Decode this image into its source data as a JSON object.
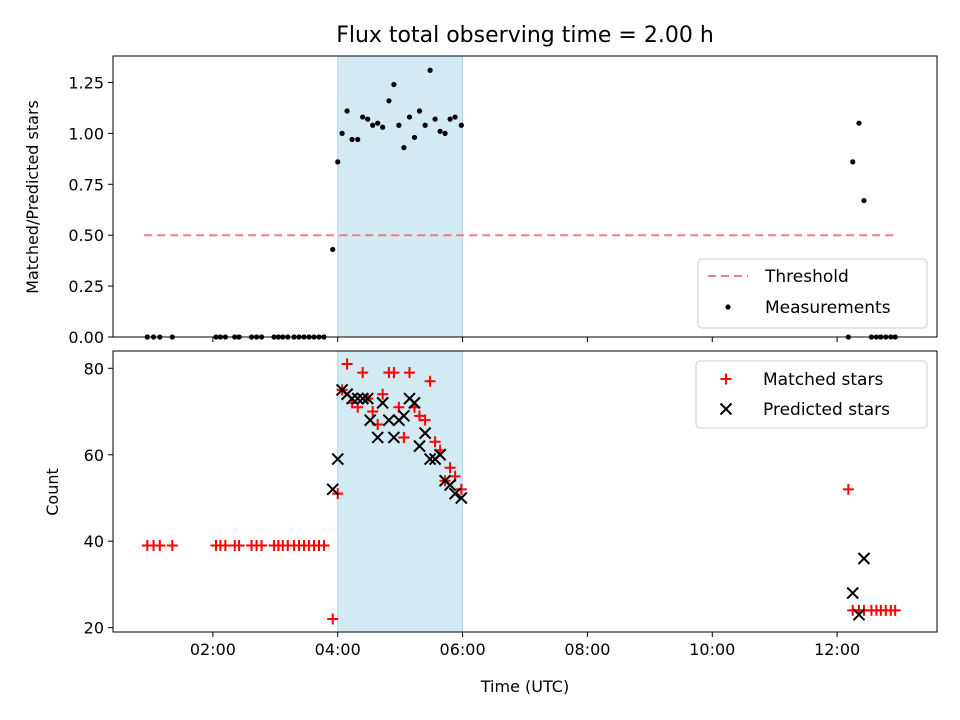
{
  "chart_data": [
    {
      "type": "scatter",
      "title": "Flux total observing time = 2.00 h",
      "xlabel": "",
      "ylabel": "Matched/Predicted stars",
      "x_unit": "hours UTC",
      "xlim": [
        0.4,
        13.6
      ],
      "ylim": [
        0,
        1.38
      ],
      "yticks": [
        "0.00",
        "0.25",
        "0.50",
        "0.75",
        "1.00",
        "1.25"
      ],
      "ytick_values": [
        0,
        0.25,
        0.5,
        0.75,
        1.0,
        1.25
      ],
      "highlight_span": [
        4.0,
        6.0
      ],
      "highlight_color": "#add8e6",
      "threshold": {
        "name": "Threshold",
        "value": 0.5,
        "x_range": [
          0.9,
          12.95
        ],
        "color": "#f08080"
      },
      "series": [
        {
          "name": "Measurements",
          "color": "#000000",
          "points": [
            [
              0.95,
              0
            ],
            [
              1.05,
              0
            ],
            [
              1.15,
              0
            ],
            [
              1.35,
              0
            ],
            [
              2.05,
              0
            ],
            [
              2.12,
              0
            ],
            [
              2.2,
              0
            ],
            [
              2.35,
              0
            ],
            [
              2.42,
              0
            ],
            [
              2.62,
              0
            ],
            [
              2.7,
              0
            ],
            [
              2.78,
              0
            ],
            [
              2.98,
              0
            ],
            [
              3.05,
              0
            ],
            [
              3.12,
              0
            ],
            [
              3.2,
              0
            ],
            [
              3.3,
              0
            ],
            [
              3.38,
              0
            ],
            [
              3.46,
              0
            ],
            [
              3.54,
              0
            ],
            [
              3.62,
              0
            ],
            [
              3.7,
              0
            ],
            [
              3.78,
              0
            ],
            [
              3.92,
              0.43
            ],
            [
              4.0,
              0.86
            ],
            [
              4.07,
              1.0
            ],
            [
              4.15,
              1.11
            ],
            [
              4.23,
              0.97
            ],
            [
              4.32,
              0.97
            ],
            [
              4.4,
              1.08
            ],
            [
              4.48,
              1.07
            ],
            [
              4.56,
              1.04
            ],
            [
              4.64,
              1.05
            ],
            [
              4.72,
              1.03
            ],
            [
              4.82,
              1.16
            ],
            [
              4.9,
              1.24
            ],
            [
              4.98,
              1.04
            ],
            [
              5.06,
              0.93
            ],
            [
              5.15,
              1.08
            ],
            [
              5.23,
              0.98
            ],
            [
              5.31,
              1.11
            ],
            [
              5.4,
              1.04
            ],
            [
              5.48,
              1.31
            ],
            [
              5.56,
              1.07
            ],
            [
              5.64,
              1.01
            ],
            [
              5.72,
              1.0
            ],
            [
              5.8,
              1.07
            ],
            [
              5.88,
              1.08
            ],
            [
              5.98,
              1.04
            ],
            [
              12.18,
              0
            ],
            [
              12.25,
              0.86
            ],
            [
              12.35,
              1.05
            ],
            [
              12.43,
              0.67
            ],
            [
              12.55,
              0
            ],
            [
              12.63,
              0
            ],
            [
              12.7,
              0
            ],
            [
              12.78,
              0
            ],
            [
              12.86,
              0
            ],
            [
              12.93,
              0
            ]
          ]
        }
      ],
      "legend": {
        "position": "lower right",
        "entries": [
          "Threshold",
          "Measurements"
        ]
      }
    },
    {
      "type": "scatter",
      "title": "",
      "xlabel": "Time (UTC)",
      "ylabel": "Count",
      "x_unit": "hours UTC",
      "xlim": [
        0.4,
        13.6
      ],
      "ylim": [
        19,
        84
      ],
      "yticks": [
        "20",
        "40",
        "60",
        "80"
      ],
      "ytick_values": [
        20,
        40,
        60,
        80
      ],
      "xticks": [
        "02:00",
        "04:00",
        "06:00",
        "08:00",
        "10:00",
        "12:00"
      ],
      "xtick_values": [
        2,
        4,
        6,
        8,
        10,
        12
      ],
      "highlight_span": [
        4.0,
        6.0
      ],
      "highlight_color": "#add8e6",
      "series": [
        {
          "name": "Matched stars",
          "marker": "plus",
          "color": "#ff0000",
          "points": [
            [
              0.95,
              39
            ],
            [
              1.05,
              39
            ],
            [
              1.15,
              39
            ],
            [
              1.35,
              39
            ],
            [
              2.05,
              39
            ],
            [
              2.12,
              39
            ],
            [
              2.2,
              39
            ],
            [
              2.35,
              39
            ],
            [
              2.42,
              39
            ],
            [
              2.62,
              39
            ],
            [
              2.7,
              39
            ],
            [
              2.78,
              39
            ],
            [
              2.98,
              39
            ],
            [
              3.05,
              39
            ],
            [
              3.12,
              39
            ],
            [
              3.2,
              39
            ],
            [
              3.3,
              39
            ],
            [
              3.38,
              39
            ],
            [
              3.46,
              39
            ],
            [
              3.54,
              39
            ],
            [
              3.62,
              39
            ],
            [
              3.7,
              39
            ],
            [
              3.78,
              39
            ],
            [
              3.92,
              22
            ],
            [
              4.0,
              51
            ],
            [
              4.07,
              75
            ],
            [
              4.15,
              81
            ],
            [
              4.23,
              72
            ],
            [
              4.32,
              71
            ],
            [
              4.4,
              79
            ],
            [
              4.48,
              73
            ],
            [
              4.56,
              70
            ],
            [
              4.64,
              67
            ],
            [
              4.72,
              74
            ],
            [
              4.82,
              79
            ],
            [
              4.9,
              79
            ],
            [
              4.98,
              71
            ],
            [
              5.06,
              64
            ],
            [
              5.15,
              79
            ],
            [
              5.23,
              71
            ],
            [
              5.31,
              69
            ],
            [
              5.4,
              68
            ],
            [
              5.48,
              77
            ],
            [
              5.56,
              63
            ],
            [
              5.64,
              61
            ],
            [
              5.72,
              54
            ],
            [
              5.8,
              57
            ],
            [
              5.88,
              55
            ],
            [
              5.98,
              52
            ],
            [
              12.18,
              52
            ],
            [
              12.25,
              24
            ],
            [
              12.35,
              24
            ],
            [
              12.43,
              24
            ],
            [
              12.55,
              24
            ],
            [
              12.63,
              24
            ],
            [
              12.7,
              24
            ],
            [
              12.78,
              24
            ],
            [
              12.86,
              24
            ],
            [
              12.93,
              24
            ]
          ]
        },
        {
          "name": "Predicted stars",
          "marker": "x",
          "color": "#000000",
          "points": [
            [
              3.92,
              52
            ],
            [
              4.0,
              59
            ],
            [
              4.07,
              75
            ],
            [
              4.15,
              74
            ],
            [
              4.23,
              73
            ],
            [
              4.32,
              73
            ],
            [
              4.4,
              73
            ],
            [
              4.48,
              73
            ],
            [
              4.52,
              68
            ],
            [
              4.64,
              64
            ],
            [
              4.72,
              72
            ],
            [
              4.82,
              68
            ],
            [
              4.9,
              64
            ],
            [
              4.98,
              68
            ],
            [
              5.06,
              69
            ],
            [
              5.15,
              73
            ],
            [
              5.23,
              72
            ],
            [
              5.31,
              62
            ],
            [
              5.4,
              65
            ],
            [
              5.48,
              59
            ],
            [
              5.56,
              59
            ],
            [
              5.64,
              60
            ],
            [
              5.72,
              54
            ],
            [
              5.8,
              53
            ],
            [
              5.88,
              51
            ],
            [
              5.98,
              50
            ],
            [
              12.25,
              28
            ],
            [
              12.35,
              23
            ],
            [
              12.43,
              36
            ]
          ]
        }
      ],
      "legend": {
        "position": "upper right",
        "entries": [
          "Matched stars",
          "Predicted stars"
        ]
      }
    }
  ]
}
